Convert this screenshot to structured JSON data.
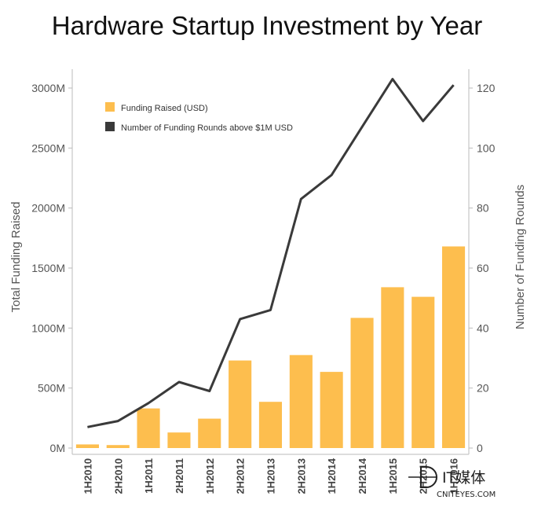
{
  "chart_data": {
    "type": "bar",
    "title": "Hardware Startup Investment by Year",
    "categories": [
      "1H2010",
      "2H2010",
      "1H2011",
      "2H2011",
      "1H2012",
      "2H2012",
      "1H2013",
      "2H2013",
      "1H2014",
      "2H2014",
      "1H2015",
      "2H2015",
      "1H2016"
    ],
    "series": [
      {
        "name": "Funding Raised (USD)",
        "type": "bar",
        "axis": "left",
        "color": "#FDBE4E",
        "values": [
          30,
          25,
          330,
          130,
          245,
          730,
          385,
          775,
          635,
          1085,
          1340,
          1260,
          1680
        ]
      },
      {
        "name": "Number of Funding Rounds above $1M USD",
        "type": "line",
        "axis": "right",
        "color": "#3A3A3A",
        "values": [
          7,
          9,
          15,
          22,
          19,
          43,
          46,
          83,
          91,
          107,
          123,
          109,
          121
        ]
      }
    ],
    "ylabel": "Total Funding Raised",
    "y2label": "Number of Funding Rounds",
    "ylim": [
      0,
      3000
    ],
    "y2lim": [
      0,
      120
    ],
    "yticks": [
      "0M",
      "500M",
      "1000M",
      "1500M",
      "2000M",
      "2500M",
      "3000M"
    ],
    "y2ticks": [
      "0",
      "20",
      "40",
      "60",
      "80",
      "100",
      "120"
    ],
    "grid": false,
    "legend_position": "top-left"
  },
  "watermark": {
    "name": "IT媒体",
    "domain": "CNITEYES.COM"
  }
}
